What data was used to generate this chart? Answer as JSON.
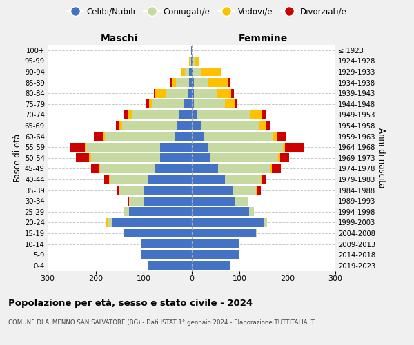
{
  "age_groups": [
    "0-4",
    "5-9",
    "10-14",
    "15-19",
    "20-24",
    "25-29",
    "30-34",
    "35-39",
    "40-44",
    "45-49",
    "50-54",
    "55-59",
    "60-64",
    "65-69",
    "70-74",
    "75-79",
    "80-84",
    "85-89",
    "90-94",
    "95-99",
    "100+"
  ],
  "birth_years": [
    "2019-2023",
    "2014-2018",
    "2009-2013",
    "2004-2008",
    "1999-2003",
    "1994-1998",
    "1989-1993",
    "1984-1988",
    "1979-1983",
    "1974-1978",
    "1969-1973",
    "1964-1968",
    "1959-1963",
    "1954-1958",
    "1949-1953",
    "1944-1948",
    "1939-1943",
    "1934-1938",
    "1929-1933",
    "1924-1928",
    "≤ 1923"
  ],
  "maschi": {
    "celibi": [
      90,
      105,
      105,
      140,
      165,
      130,
      100,
      100,
      90,
      75,
      65,
      65,
      35,
      30,
      25,
      16,
      8,
      5,
      5,
      1,
      1
    ],
    "coniugati": [
      0,
      0,
      0,
      2,
      8,
      10,
      30,
      50,
      80,
      115,
      145,
      155,
      145,
      115,
      100,
      65,
      45,
      28,
      8,
      2,
      0
    ],
    "vedovi": [
      0,
      0,
      0,
      0,
      5,
      2,
      0,
      1,
      2,
      2,
      3,
      3,
      5,
      5,
      8,
      8,
      22,
      8,
      10,
      2,
      0
    ],
    "divorziati": [
      0,
      0,
      0,
      0,
      0,
      0,
      3,
      5,
      10,
      18,
      28,
      30,
      18,
      8,
      8,
      5,
      3,
      3,
      0,
      0,
      0
    ]
  },
  "femmine": {
    "nubili": [
      82,
      100,
      100,
      135,
      150,
      120,
      90,
      85,
      70,
      55,
      40,
      35,
      25,
      20,
      12,
      5,
      5,
      5,
      3,
      2,
      0
    ],
    "coniugate": [
      0,
      0,
      0,
      2,
      8,
      10,
      28,
      50,
      75,
      110,
      140,
      155,
      145,
      120,
      110,
      65,
      48,
      30,
      18,
      5,
      0
    ],
    "vedove": [
      0,
      0,
      0,
      0,
      0,
      0,
      1,
      2,
      3,
      3,
      5,
      5,
      8,
      15,
      25,
      20,
      30,
      40,
      40,
      10,
      1
    ],
    "divorziate": [
      0,
      0,
      0,
      0,
      0,
      0,
      0,
      8,
      8,
      18,
      18,
      40,
      20,
      10,
      8,
      5,
      5,
      5,
      0,
      0,
      0
    ]
  },
  "colors": {
    "celibi": "#4472c4",
    "coniugati": "#c5d9a0",
    "vedovi": "#ffc000",
    "divorziati": "#cc0000"
  },
  "title": "Popolazione per età, sesso e stato civile - 2024",
  "subtitle": "COMUNE DI ALMENNO SAN SALVATORE (BG) - Dati ISTAT 1° gennaio 2024 - Elaborazione TUTTITALIA.IT",
  "xlabel_maschi": "Maschi",
  "xlabel_femmine": "Femmine",
  "ylabel": "Fasce di età",
  "ylabel_right": "Anni di nascita",
  "xlim": 300,
  "background_color": "#f0f0f0",
  "plot_background": "#ffffff"
}
